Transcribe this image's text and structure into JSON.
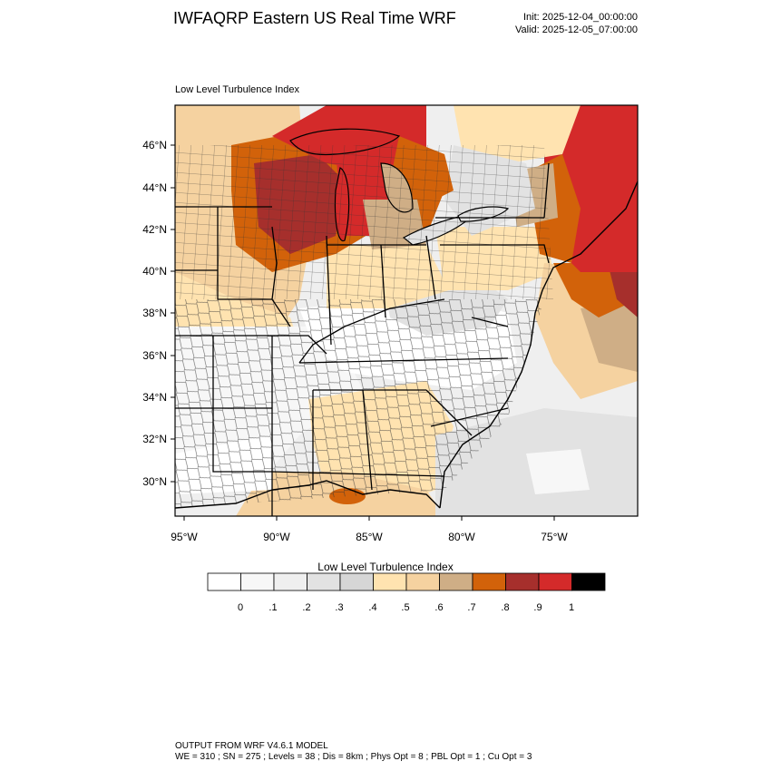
{
  "header": {
    "title": "IWFAQRP Eastern US Real Time WRF",
    "init": "Init: 2025-12-04_00:00:00",
    "valid": "Valid: 2025-12-05_07:00:00"
  },
  "panel": {
    "label": "Low Level Turbulence Index"
  },
  "map": {
    "lat_labels": [
      "46°N",
      "44°N",
      "42°N",
      "40°N",
      "38°N",
      "36°N",
      "34°N",
      "32°N",
      "30°N"
    ],
    "lon_labels": [
      "95°W",
      "90°W",
      "85°W",
      "80°W",
      "75°W"
    ],
    "colors": {
      "c0": "#ffffff",
      "c1": "#f7f7f7",
      "c2": "#efefef",
      "c3": "#e2e2e2",
      "c4": "#d6d6d6",
      "c5": "#ffe3b0",
      "c6": "#f5d2a0",
      "c7": "#cfae86",
      "c8": "#d2620a",
      "c9": "#a62f2c",
      "c10": "#d42a2a",
      "c11": "#000000"
    }
  },
  "colorbar": {
    "title": "Low Level Turbulence Index",
    "colors": [
      "#ffffff",
      "#f7f7f7",
      "#efefef",
      "#e2e2e2",
      "#d6d6d6",
      "#ffe3b0",
      "#f5d2a0",
      "#cfae86",
      "#d2620a",
      "#a62f2c",
      "#d42a2a",
      "#000000"
    ],
    "tick_labels": [
      "0",
      ".1",
      ".2",
      ".3",
      ".4",
      ".5",
      ".6",
      ".7",
      ".8",
      ".9",
      "1"
    ]
  },
  "footer": {
    "line1": "OUTPUT FROM WRF V4.6.1 MODEL",
    "line2": "WE = 310 ; SN = 275 ; Levels = 38 ; Dis = 8km ; Phys Opt = 8 ; PBL Opt = 1 ; Cu Opt = 3"
  }
}
